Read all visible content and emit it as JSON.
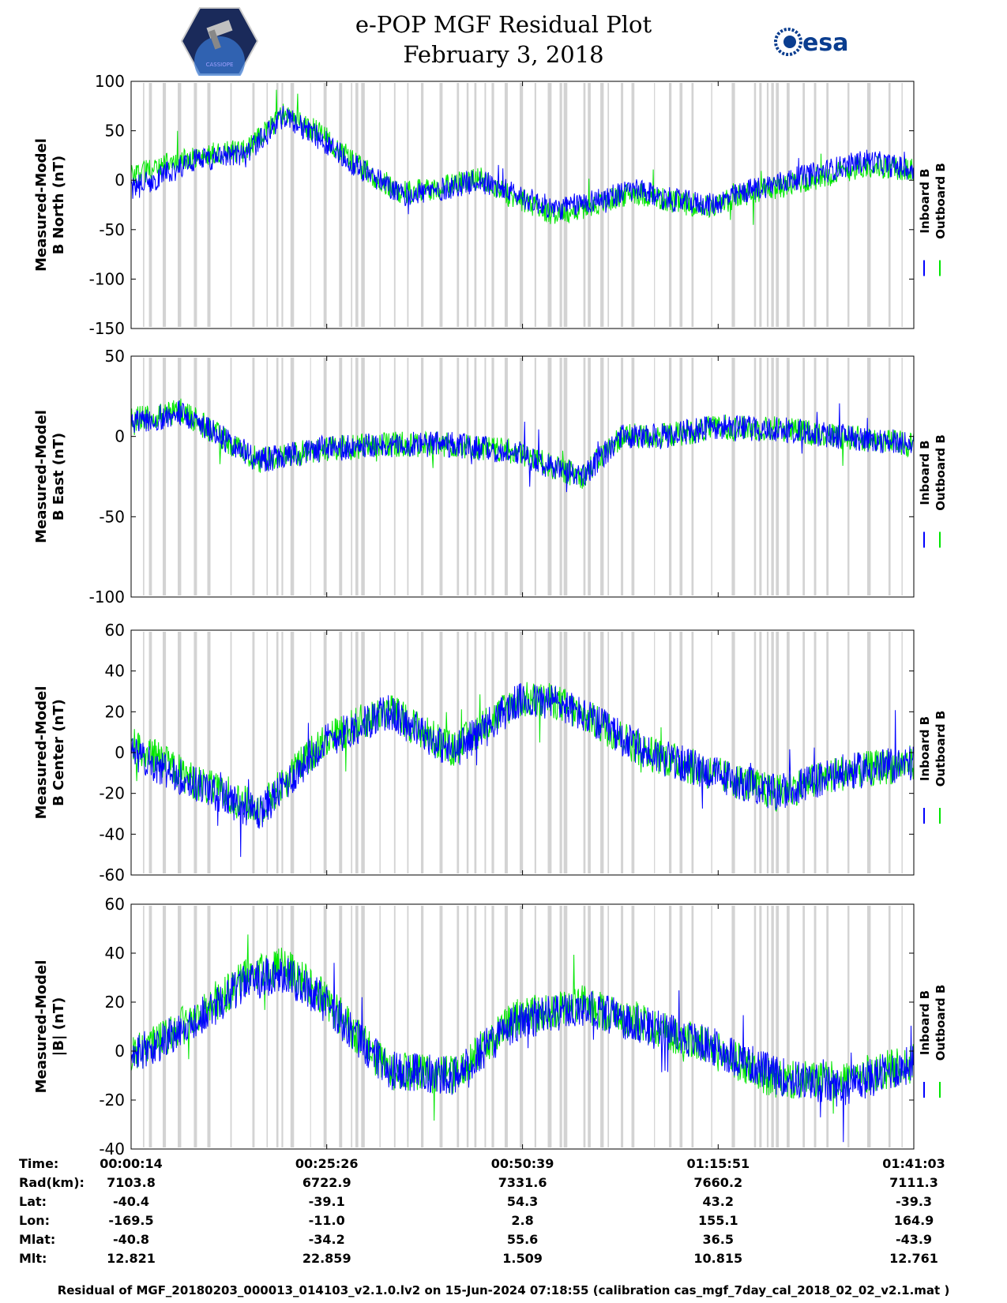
{
  "header": {
    "title_line1": "e-POP MGF Residual Plot",
    "title_line2": "February 3, 2018",
    "left_logo_text": "CASSIOPE",
    "right_logo_text": "esa"
  },
  "colors": {
    "inboard": "#0000ff",
    "outboard": "#00e600",
    "gap_band": "#d3d3d3",
    "axis": "#000000"
  },
  "chart_data": [
    {
      "type": "line",
      "ylabel_line1": "Measured-Model",
      "ylabel_line2": "B North (nT)",
      "ylim": [
        -150,
        100
      ],
      "yticks": [
        100,
        50,
        0,
        -50,
        -100,
        -150
      ],
      "series": [
        {
          "name": "Inboard B"
        },
        {
          "name": "Outboard B"
        }
      ],
      "x": [
        14,
        500,
        900,
        1200,
        1500,
        1800,
        2100,
        2400,
        2700,
        3000,
        3300,
        3600,
        3900,
        4200,
        4500,
        4800,
        5100,
        5400,
        5700,
        6063
      ],
      "inboard": [
        -10,
        20,
        25,
        65,
        40,
        10,
        -15,
        -10,
        0,
        -15,
        -30,
        -20,
        -10,
        -20,
        -25,
        -10,
        0,
        10,
        20,
        10
      ],
      "outboard": [
        5,
        25,
        30,
        68,
        45,
        12,
        -13,
        -8,
        2,
        -18,
        -35,
        -25,
        -12,
        -22,
        -27,
        -12,
        -5,
        5,
        15,
        10
      ],
      "amp": 12
    },
    {
      "type": "line",
      "ylabel_line1": "Measured-Model",
      "ylabel_line2": "B East (nT)",
      "ylim": [
        -100,
        50
      ],
      "yticks": [
        50,
        0,
        -50,
        -100
      ],
      "series": [
        {
          "name": "Inboard B"
        },
        {
          "name": "Outboard B"
        }
      ],
      "x": [
        14,
        400,
        700,
        1000,
        1500,
        2000,
        2500,
        3000,
        3300,
        3500,
        3800,
        4100,
        4500,
        5000,
        5500,
        6063
      ],
      "inboard": [
        8,
        15,
        0,
        -15,
        -8,
        -5,
        -5,
        -10,
        -20,
        -25,
        0,
        0,
        5,
        5,
        0,
        -5
      ],
      "outboard": [
        10,
        16,
        0,
        -15,
        -8,
        -5,
        -5,
        -10,
        -20,
        -25,
        0,
        0,
        5,
        5,
        0,
        -5
      ],
      "amp": 8
    },
    {
      "type": "line",
      "ylabel_line1": "Measured-Model",
      "ylabel_line2": "B Center (nT)",
      "ylim": [
        -60,
        60
      ],
      "yticks": [
        60,
        40,
        20,
        0,
        -20,
        -40,
        -60
      ],
      "series": [
        {
          "name": "Inboard B"
        },
        {
          "name": "Outboard B"
        }
      ],
      "x": [
        14,
        500,
        1000,
        1500,
        2000,
        2500,
        3000,
        3300,
        3600,
        4000,
        4500,
        5000,
        5500,
        6063
      ],
      "inboard": [
        0,
        -15,
        -30,
        5,
        20,
        0,
        25,
        25,
        15,
        0,
        -10,
        -20,
        -10,
        -5
      ],
      "outboard": [
        5,
        -14,
        -28,
        6,
        21,
        1,
        26,
        25,
        15,
        0,
        -10,
        -20,
        -10,
        -5
      ],
      "amp": 9
    },
    {
      "type": "line",
      "ylabel_line1": "Measured-Model",
      "ylabel_line2": "|B| (nT)",
      "ylim": [
        -40,
        60
      ],
      "yticks": [
        60,
        40,
        20,
        0,
        -20,
        -40
      ],
      "series": [
        {
          "name": "Inboard B"
        },
        {
          "name": "Outboard B"
        }
      ],
      "x": [
        14,
        500,
        900,
        1200,
        1500,
        2000,
        2500,
        3000,
        3500,
        4000,
        4500,
        5000,
        5500,
        6063
      ],
      "inboard": [
        -3,
        12,
        28,
        32,
        20,
        -8,
        -10,
        12,
        18,
        10,
        2,
        -10,
        -15,
        -5
      ],
      "outboard": [
        -2,
        13,
        30,
        35,
        22,
        -8,
        -10,
        14,
        19,
        11,
        1,
        -12,
        -12,
        -5
      ],
      "amp": 8
    }
  ],
  "legend": {
    "inboard": "Inboard B",
    "outboard": "Outboard B"
  },
  "info_table": {
    "labels": [
      "Time:",
      "Rad(km):",
      "Lat:",
      "Lon:",
      "Mlat:",
      "Mlt:"
    ],
    "columns": [
      [
        "00:00:14",
        "7103.8",
        "-40.4",
        "-169.5",
        "-40.8",
        "12.821"
      ],
      [
        "00:25:26",
        "6722.9",
        "-39.1",
        "-11.0",
        "-34.2",
        "22.859"
      ],
      [
        "00:50:39",
        "7331.6",
        "54.3",
        "2.8",
        "55.6",
        "1.509"
      ],
      [
        "01:15:51",
        "7660.2",
        "43.2",
        "155.1",
        "36.5",
        "10.815"
      ],
      [
        "01:41:03",
        "7111.3",
        "-39.3",
        "164.9",
        "-43.9",
        "12.761"
      ]
    ]
  },
  "footer": "Residual of MGF_20180203_000013_014103_v2.1.0.lv2 on 15-Jun-2024 07:18:55 (calibration cas_mgf_7day_cal_2018_02_02_v2.1.mat )"
}
